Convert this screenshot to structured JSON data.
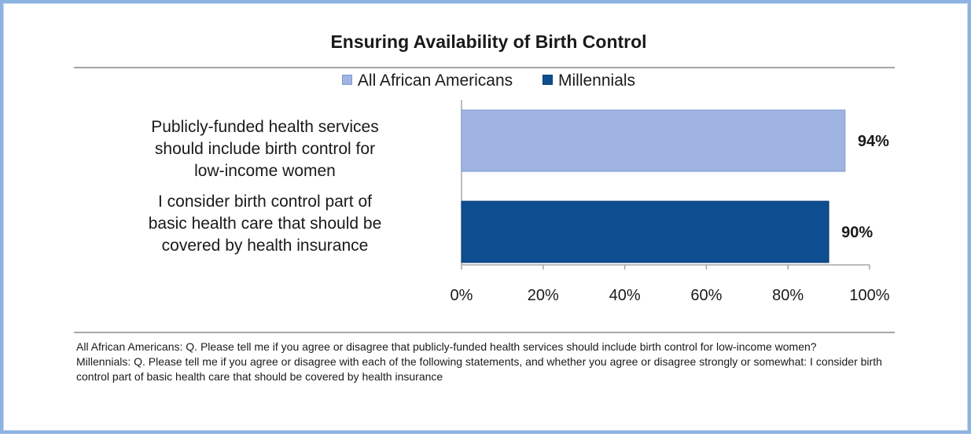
{
  "chart_data": {
    "type": "bar",
    "orientation": "horizontal",
    "title": "Ensuring Availability of Birth Control",
    "categories": [
      "Publicly-funded health services should include birth control for low-income women",
      "I consider birth control part of basic health care that should be covered by health insurance"
    ],
    "category_lines": [
      [
        "Publicly-funded health services",
        "should include birth control for",
        "low-income women"
      ],
      [
        "I consider birth control part of",
        "basic health care that should be",
        "covered by health insurance"
      ]
    ],
    "series": [
      {
        "name": "All African Americans",
        "color": "#9fb4e3",
        "edge": "#7f97cf",
        "values": [
          94,
          null
        ]
      },
      {
        "name": "Millennials",
        "color": "#0f4d91",
        "edge": "#0a3d74",
        "values": [
          null,
          90
        ]
      }
    ],
    "data_labels": [
      "94%",
      "90%"
    ],
    "xlim": [
      0,
      100
    ],
    "xticks": [
      0,
      20,
      40,
      60,
      80,
      100
    ],
    "xtick_labels": [
      "0%",
      "20%",
      "40%",
      "60%",
      "80%",
      "100%"
    ],
    "legend_position": "top-center",
    "grid": false
  },
  "footnotes": [
    "All African Americans: Q. Please tell me if you agree or disagree that publicly-funded health services should include birth control for low-income women?",
    "Millennials: Q. Please tell me if you agree or disagree with each of the following statements, and whether you agree or disagree strongly or somewhat:  I consider birth control part of basic health care that should be covered by health insurance"
  ]
}
